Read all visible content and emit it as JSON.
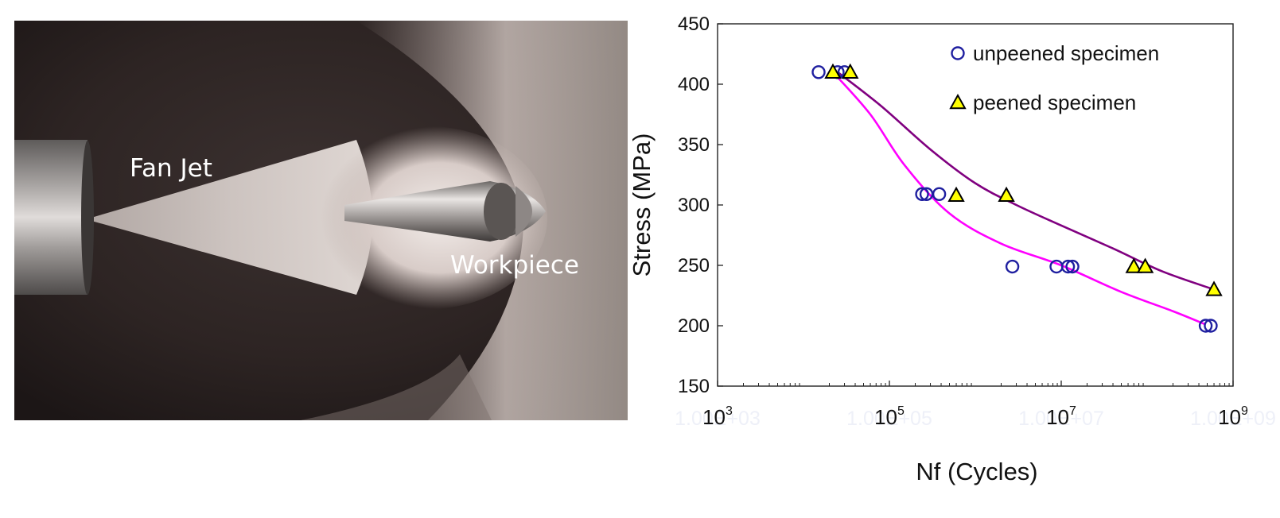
{
  "photo": {
    "label_fan_jet": "Fan Jet",
    "label_workpiece": "Workpiece"
  },
  "chart_data": {
    "type": "scatter",
    "xlabel": "Nf (Cycles)",
    "ylabel": "Stress (MPa)",
    "x_scale": "log",
    "xlim": [
      1000,
      1000000000
    ],
    "ylim": [
      150,
      450
    ],
    "x_ticks": [
      {
        "value": 1000,
        "base": "10",
        "exp": "3"
      },
      {
        "value": 100000,
        "base": "10",
        "exp": "5"
      },
      {
        "value": 10000000,
        "base": "10",
        "exp": "7"
      },
      {
        "value": 1000000000,
        "base": "10",
        "exp": "9"
      }
    ],
    "x_ghost_labels": [
      "1.00E+03",
      "1.00E+05",
      "1.00E+07",
      "1.00E+09"
    ],
    "y_ticks": [
      150,
      200,
      250,
      300,
      350,
      400,
      450
    ],
    "grid": false,
    "legend_position": "top-right",
    "series": [
      {
        "name": "unpeened specimen",
        "marker": "circle",
        "color": "#1f1fa0",
        "fill": "none",
        "points": [
          {
            "x": 15000,
            "y": 410
          },
          {
            "x": 25000,
            "y": 410
          },
          {
            "x": 30000,
            "y": 410
          },
          {
            "x": 240000,
            "y": 309
          },
          {
            "x": 270000,
            "y": 309
          },
          {
            "x": 380000,
            "y": 309
          },
          {
            "x": 2700000,
            "y": 249
          },
          {
            "x": 8800000,
            "y": 249
          },
          {
            "x": 12000000,
            "y": 249
          },
          {
            "x": 13500000,
            "y": 249
          },
          {
            "x": 480000000,
            "y": 200
          },
          {
            "x": 550000000,
            "y": 200
          }
        ],
        "fit": {
          "color": "#ff00ff",
          "points": [
            {
              "x": 22000,
              "y": 410
            },
            {
              "x": 60000,
              "y": 375
            },
            {
              "x": 150000,
              "y": 333
            },
            {
              "x": 500000,
              "y": 293
            },
            {
              "x": 2000000,
              "y": 268
            },
            {
              "x": 10000000,
              "y": 250
            },
            {
              "x": 50000000,
              "y": 228
            },
            {
              "x": 200000000,
              "y": 212
            },
            {
              "x": 480000000,
              "y": 201
            }
          ]
        }
      },
      {
        "name": "peened specimen",
        "marker": "triangle",
        "color": "#000000",
        "fill": "#ffff00",
        "points": [
          {
            "x": 22000,
            "y": 410
          },
          {
            "x": 35000,
            "y": 410
          },
          {
            "x": 600000,
            "y": 308
          },
          {
            "x": 2300000,
            "y": 308
          },
          {
            "x": 70000000,
            "y": 249
          },
          {
            "x": 95000000,
            "y": 249
          },
          {
            "x": 600000000,
            "y": 230
          }
        ],
        "fit": {
          "color": "#800080",
          "points": [
            {
              "x": 25000,
              "y": 410
            },
            {
              "x": 80000,
              "y": 382
            },
            {
              "x": 300000,
              "y": 346
            },
            {
              "x": 1000000,
              "y": 318
            },
            {
              "x": 3000000,
              "y": 300
            },
            {
              "x": 10000000,
              "y": 283
            },
            {
              "x": 40000000,
              "y": 264
            },
            {
              "x": 150000000,
              "y": 245
            },
            {
              "x": 600000000,
              "y": 230
            }
          ]
        }
      }
    ]
  }
}
